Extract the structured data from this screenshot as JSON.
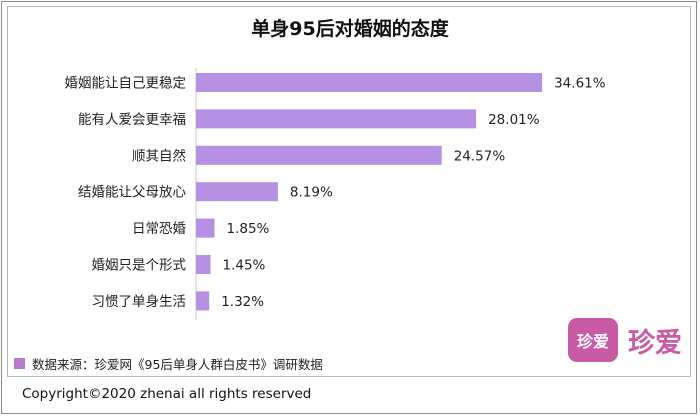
{
  "colors": {
    "bar": "#B590E3",
    "legend": "#B67BCB",
    "brand": "#C85AA6"
  },
  "chart_data": {
    "type": "bar",
    "orientation": "horizontal",
    "title": "单身95后对婚姻的态度",
    "categories": [
      "婚姻能让自己更稳定",
      "能有人爱会更幸福",
      "顺其自然",
      "结婚能让父母放心",
      "日常恐婚",
      "婚姻只是个形式",
      "习惯了单身生活"
    ],
    "values": [
      34.61,
      28.01,
      24.57,
      8.19,
      1.85,
      1.45,
      1.32
    ],
    "value_labels": [
      "34.61%",
      "28.01%",
      "24.57%",
      "8.19%",
      "1.85%",
      "1.45%",
      "1.32%"
    ],
    "xlim": [
      0,
      40
    ],
    "grid": false
  },
  "source": {
    "legend_text": "数据来源：珍爱网《95后单身人群白皮书》调研数据"
  },
  "brand": {
    "icon_text": "珍爱",
    "name": "珍爱"
  },
  "copyright": "Copyright©2020 zhenai all rights reserved"
}
